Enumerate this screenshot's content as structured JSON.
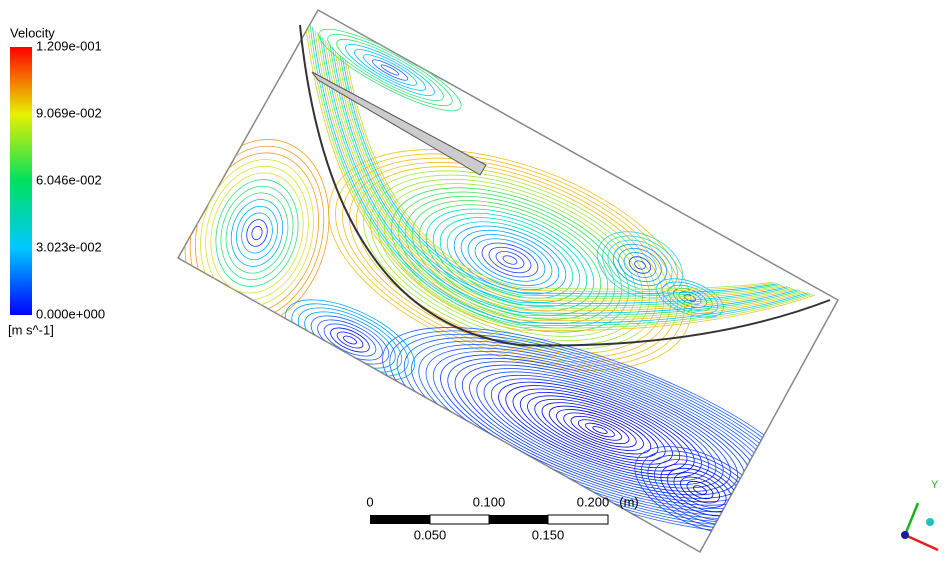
{
  "legend": {
    "title": "Velocity",
    "labels": [
      "1.209e-001",
      "9.069e-002",
      "6.046e-002",
      "3.023e-002",
      "0.000e+000"
    ],
    "unit": "[m s^-1]"
  },
  "scale_bar": {
    "top_labels": [
      "0",
      "0.100",
      "0.200"
    ],
    "unit": "(m)",
    "bottom_labels": [
      "0.050",
      "0.150"
    ]
  },
  "axes": {
    "y": "Y"
  }
}
